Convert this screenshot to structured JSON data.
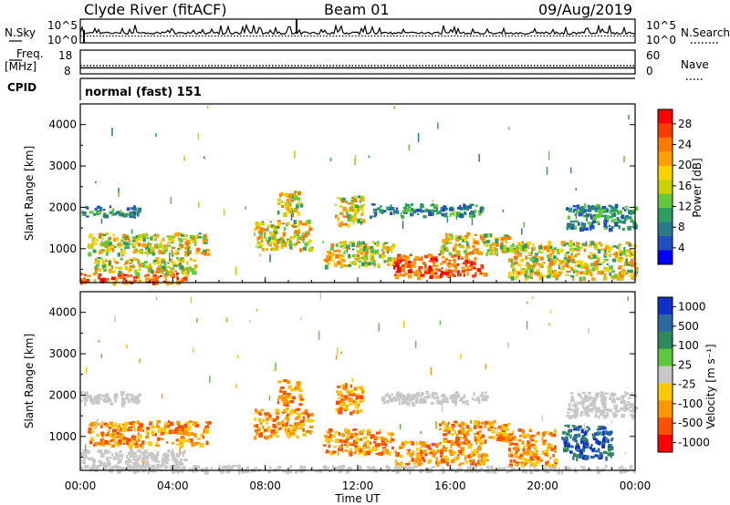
{
  "header": {
    "station": "Clyde River (fitACF)",
    "beam": "Beam 01",
    "date": "09/Aug/2019"
  },
  "status_panels": {
    "nsky_label": "N.Sky",
    "nsearch_label": "N.Search",
    "nsky_ticks": [
      "10^5",
      "10^0"
    ],
    "nsearch_ticks": [
      "10^5",
      "10^0"
    ],
    "freq_label_1": "Freq.",
    "freq_label_2": "[MHz]",
    "freq_ticks": [
      "18",
      "8"
    ],
    "nave_label": "Nave",
    "nave_ticks": [
      "60",
      "0"
    ],
    "cpid_label": "CPID",
    "cpid_text": "normal (fast) 151"
  },
  "chart_data": [
    {
      "type": "heatmap",
      "name": "Power",
      "ylabel": "Slant Range [km]",
      "ylim": [
        180,
        4500
      ],
      "yticks": [
        1000,
        2000,
        3000,
        4000
      ],
      "colorbar_label": "Power [dB]",
      "colorbar_ticks": [
        "28",
        "24",
        "20",
        "16",
        "12",
        "8",
        "4"
      ],
      "colorbar_colors": [
        "#ff0000",
        "#ff3c00",
        "#ff7800",
        "#ffa000",
        "#ffd200",
        "#c8d200",
        "#64c83c",
        "#2e9e5e",
        "#2a7a8a",
        "#2050c0",
        "#0000ff"
      ],
      "echo_regions": [
        {
          "t0": 0.0,
          "t1": 4.5,
          "r0": 200,
          "r1": 420,
          "level": "high"
        },
        {
          "t0": 0.5,
          "t1": 5.0,
          "r0": 420,
          "r1": 800,
          "level": "mid"
        },
        {
          "t0": 0.3,
          "t1": 5.5,
          "r0": 900,
          "r1": 1400,
          "level": "mid"
        },
        {
          "t0": 0.0,
          "t1": 2.5,
          "r0": 1800,
          "r1": 2050,
          "level": "low"
        },
        {
          "t0": 7.5,
          "t1": 10.0,
          "r0": 1000,
          "r1": 1700,
          "level": "mid"
        },
        {
          "t0": 8.5,
          "t1": 9.5,
          "r0": 1800,
          "r1": 2400,
          "level": "mid"
        },
        {
          "t0": 11.0,
          "t1": 12.2,
          "r0": 1600,
          "r1": 2300,
          "level": "mid"
        },
        {
          "t0": 10.5,
          "t1": 13.5,
          "r0": 600,
          "r1": 1200,
          "level": "mid"
        },
        {
          "t0": 13.5,
          "t1": 17.5,
          "r0": 350,
          "r1": 900,
          "level": "high"
        },
        {
          "t0": 15.5,
          "t1": 18.5,
          "r0": 900,
          "r1": 1400,
          "level": "mid"
        },
        {
          "t0": 12.5,
          "t1": 17.5,
          "r0": 1800,
          "r1": 2100,
          "level": "low"
        },
        {
          "t0": 18.5,
          "t1": 24.0,
          "r0": 300,
          "r1": 1200,
          "level": "mid"
        },
        {
          "t0": 21.0,
          "t1": 24.0,
          "r0": 1500,
          "r1": 2100,
          "level": "low"
        }
      ]
    },
    {
      "type": "heatmap",
      "name": "Velocity",
      "ylabel": "Slant Range [km]",
      "ylim": [
        180,
        4500
      ],
      "yticks": [
        1000,
        2000,
        3000,
        4000
      ],
      "colorbar_label": "Velocity [m s⁻¹]",
      "colorbar_ticks": [
        "1000",
        "500",
        "100",
        "25",
        "-25",
        "-100",
        "-500",
        "-1000"
      ],
      "colorbar_colors": [
        "#1030c8",
        "#2a6aa0",
        "#2e8a5c",
        "#5ec83c",
        "#c8c8c8",
        "#ffc800",
        "#ff9600",
        "#ff5000",
        "#ff0000"
      ],
      "echo_regions": [
        {
          "t0": 0.0,
          "t1": 4.5,
          "r0": 200,
          "r1": 700,
          "level": "ground"
        },
        {
          "t0": 0.3,
          "t1": 5.5,
          "r0": 800,
          "r1": 1400,
          "level": "neg"
        },
        {
          "t0": 0.0,
          "t1": 2.5,
          "r0": 1800,
          "r1": 2100,
          "level": "ground"
        },
        {
          "t0": 7.5,
          "t1": 10.0,
          "r0": 1000,
          "r1": 1700,
          "level": "neg"
        },
        {
          "t0": 8.5,
          "t1": 9.5,
          "r0": 1800,
          "r1": 2400,
          "level": "neg"
        },
        {
          "t0": 11.0,
          "t1": 12.2,
          "r0": 1600,
          "r1": 2300,
          "level": "neg"
        },
        {
          "t0": 10.5,
          "t1": 13.5,
          "r0": 600,
          "r1": 1200,
          "level": "neg"
        },
        {
          "t0": 13.5,
          "t1": 17.5,
          "r0": 350,
          "r1": 900,
          "level": "neg"
        },
        {
          "t0": 15.5,
          "t1": 18.5,
          "r0": 900,
          "r1": 1400,
          "level": "neg"
        },
        {
          "t0": 13.0,
          "t1": 17.5,
          "r0": 1800,
          "r1": 2100,
          "level": "ground"
        },
        {
          "t0": 18.5,
          "t1": 20.5,
          "r0": 300,
          "r1": 1200,
          "level": "neg"
        },
        {
          "t0": 20.8,
          "t1": 23.0,
          "r0": 500,
          "r1": 1300,
          "level": "pos"
        },
        {
          "t0": 21.0,
          "t1": 24.0,
          "r0": 1500,
          "r1": 2100,
          "level": "ground"
        },
        {
          "t0": 0.0,
          "t1": 24.0,
          "r0": 180,
          "r1": 320,
          "level": "ground"
        }
      ]
    }
  ],
  "x_axis": {
    "ticks": [
      "00:00",
      "04:00",
      "08:00",
      "12:00",
      "16:00",
      "20:00",
      "00:00"
    ],
    "label": "Time UT",
    "range_hours": [
      0,
      24
    ]
  }
}
